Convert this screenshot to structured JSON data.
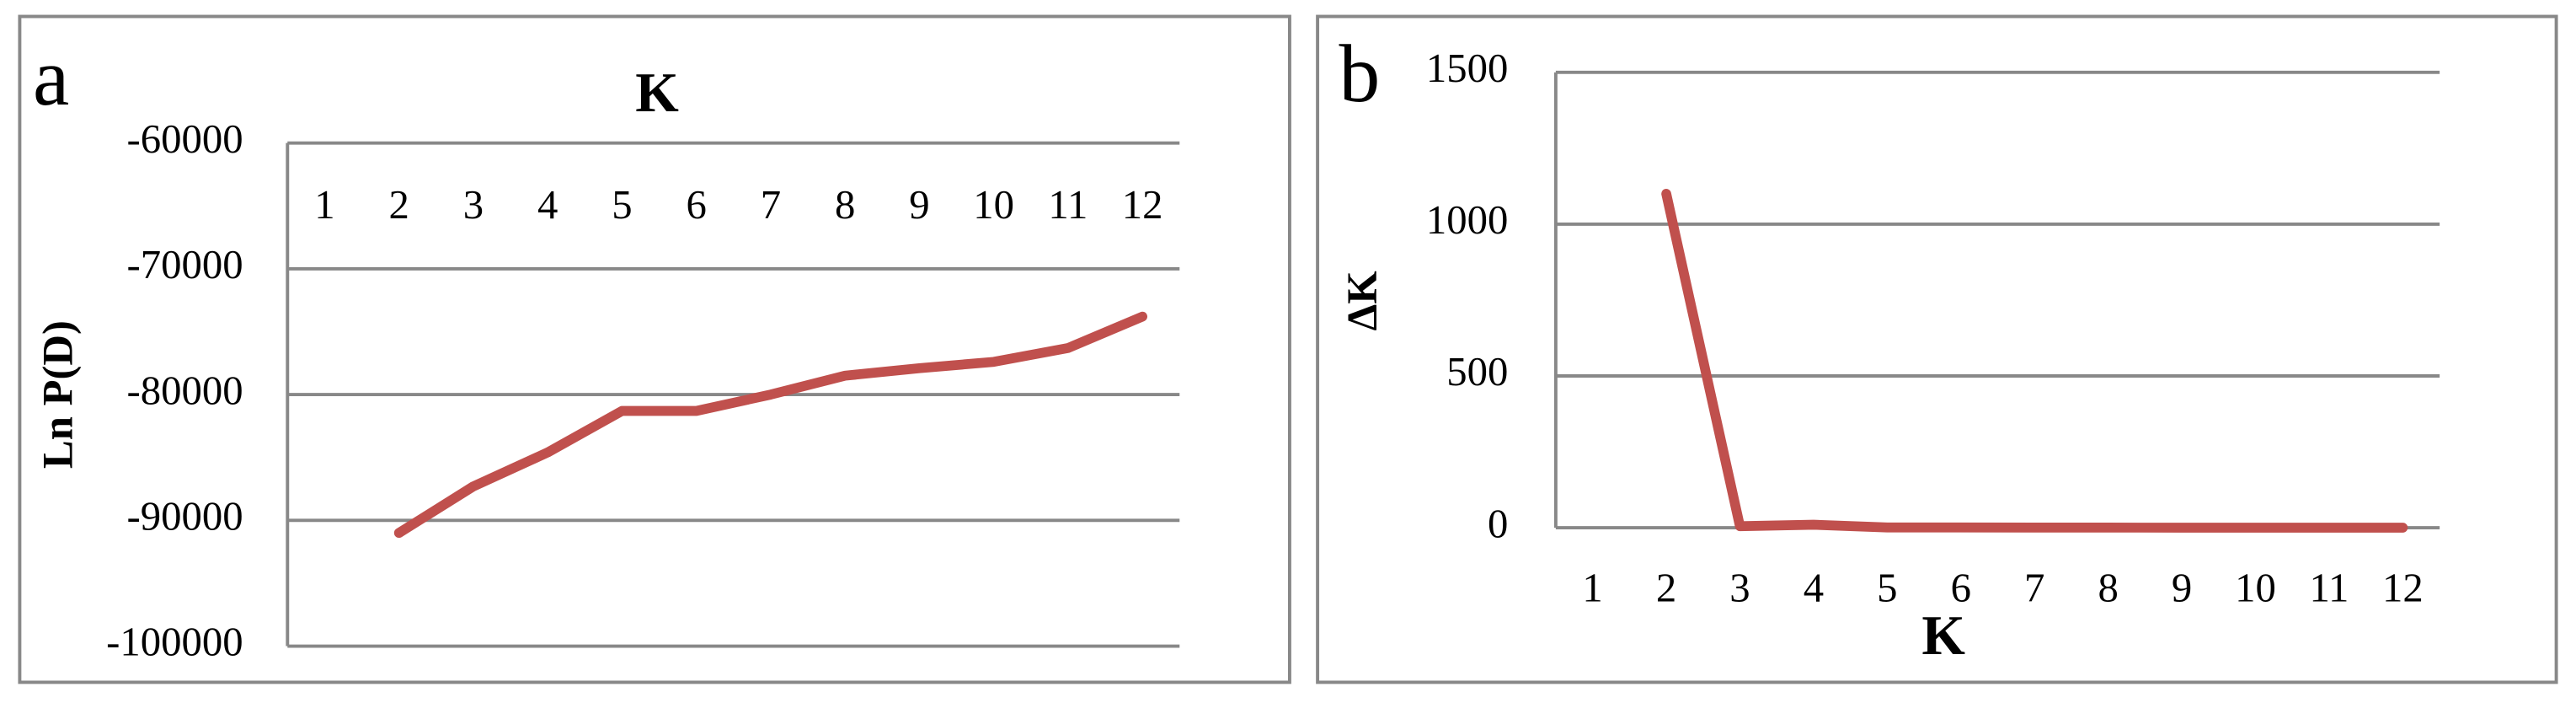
{
  "chart_data": [
    {
      "type": "line",
      "panel_label": "a",
      "x_label": "K",
      "y_label": "Ln P(D)",
      "categories": [
        "1",
        "2",
        "3",
        "4",
        "5",
        "6",
        "7",
        "8",
        "9",
        "10",
        "11",
        "12"
      ],
      "values": [
        null,
        -91000,
        -87300,
        -84600,
        -81300,
        -81300,
        -80000,
        -78500,
        -77900,
        -77400,
        -76300,
        -73800
      ],
      "color": "#c0504d",
      "ylim": [
        -100000,
        -60000
      ],
      "yticks": [
        -100000,
        -90000,
        -80000,
        -70000,
        -60000
      ],
      "grid": true
    },
    {
      "type": "line",
      "panel_label": "b",
      "x_label": "K",
      "y_label": "ΔK",
      "categories": [
        "1",
        "2",
        "3",
        "4",
        "5",
        "6",
        "7",
        "8",
        "9",
        "10",
        "11",
        "12"
      ],
      "values": [
        null,
        1100,
        5,
        10,
        1,
        1,
        0.5,
        0.5,
        0.3,
        0.3,
        0.3,
        0.3
      ],
      "color": "#c0504d",
      "ylim": [
        0,
        1500
      ],
      "yticks": [
        0,
        500,
        1000,
        1500
      ],
      "grid": true
    }
  ]
}
